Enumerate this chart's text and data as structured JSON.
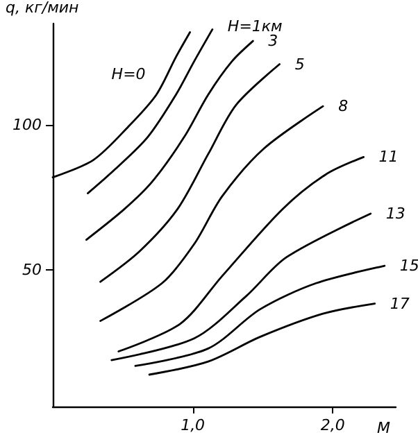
{
  "chart_data": {
    "type": "line",
    "xlabel": "M",
    "ylabel": "q, кг/мин",
    "xlim": [
      0,
      2.45
    ],
    "ylim": [
      3,
      135
    ],
    "xticks": [
      {
        "value": 1,
        "label": "1,0"
      },
      {
        "value": 2,
        "label": "2,0"
      }
    ],
    "yticks": [
      50,
      100
    ],
    "grid": false,
    "legend": false,
    "marker": "none",
    "line_style": "solid",
    "series": [
      {
        "name": "H=0",
        "color": "#000000",
        "x": [
          0,
          0.29,
          0.54,
          0.74,
          0.88,
          0.98
        ],
        "values": [
          82,
          88,
          99.5,
          110.5,
          123.5,
          132
        ]
      },
      {
        "name": "H=1км",
        "color": "#000000",
        "x": [
          0.25,
          0.45,
          0.68,
          0.88,
          1.01,
          1.14
        ],
        "values": [
          76.5,
          85,
          96,
          110.5,
          122,
          133
        ]
      },
      {
        "name": "3",
        "color": "#000000",
        "x": [
          0.24,
          0.51,
          0.71,
          0.94,
          1.11,
          1.28,
          1.43
        ],
        "values": [
          60.5,
          71,
          80.5,
          96,
          110.5,
          122,
          129
        ]
      },
      {
        "name": "5",
        "color": "#000000",
        "x": [
          0.34,
          0.62,
          0.89,
          1.11,
          1.31,
          1.62
        ],
        "values": [
          46,
          56.5,
          71,
          90,
          107,
          121
        ]
      },
      {
        "name": "8",
        "color": "#000000",
        "x": [
          0.34,
          0.78,
          1.01,
          1.21,
          1.51,
          1.93
        ],
        "values": [
          32.5,
          45.5,
          59,
          75.5,
          92,
          106.5
        ]
      },
      {
        "name": "11",
        "color": "#000000",
        "x": [
          0.47,
          0.91,
          1.21,
          1.64,
          1.95,
          2.22
        ],
        "values": [
          22,
          31.5,
          48,
          71,
          83,
          89
        ]
      },
      {
        "name": "13",
        "color": "#000000",
        "x": [
          0.42,
          1.01,
          1.38,
          1.67,
          2.27
        ],
        "values": [
          19,
          26.5,
          41,
          54.5,
          69.5
        ]
      },
      {
        "name": "15",
        "color": "#000000",
        "x": [
          0.59,
          1.11,
          1.48,
          1.88,
          2.37
        ],
        "values": [
          17,
          23,
          36.5,
          45.5,
          51.5
        ]
      },
      {
        "name": "17",
        "color": "#000000",
        "x": [
          0.69,
          1.11,
          1.48,
          1.93,
          2.3
        ],
        "values": [
          14,
          18.5,
          27,
          35,
          38.5
        ]
      }
    ]
  }
}
